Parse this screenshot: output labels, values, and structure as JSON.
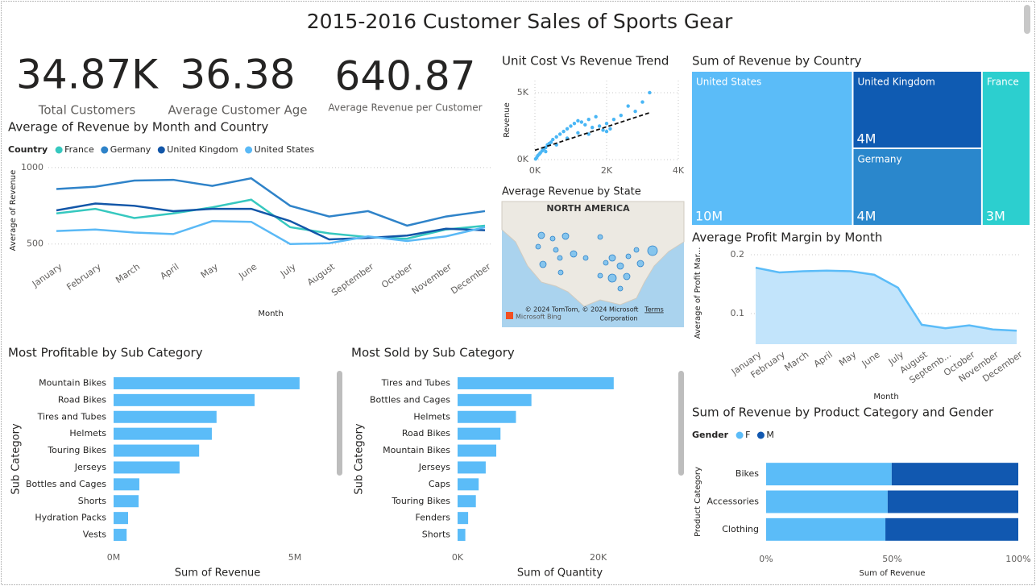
{
  "title": "2015-2016 Customer Sales of Sports Gear",
  "kpis": [
    {
      "value": "34.87K",
      "label": "Total Customers"
    },
    {
      "value": "36.38",
      "label": "Average Customer Age"
    },
    {
      "value": "640.87",
      "label": "Average Revenue per Customer"
    }
  ],
  "map": {
    "title": "Average Revenue by State",
    "region_label": "NORTH AMERICA",
    "attribution_lines": [
      "© 2024 TomTom, © 2024 Microsoft",
      "Corporation"
    ],
    "terms": "Terms",
    "provider": "Microsoft Bing"
  },
  "chart_data": [
    {
      "type": "line",
      "title": "Average of Revenue by Month and Country",
      "legend_title": "Country",
      "x_label": "Month",
      "y_label": "Average of Revenue",
      "categories": [
        "January",
        "February",
        "March",
        "April",
        "May",
        "June",
        "July",
        "August",
        "September",
        "October",
        "November",
        "December"
      ],
      "series": [
        {
          "name": "France",
          "color": "#36c8bf",
          "values": [
            700,
            730,
            670,
            700,
            740,
            790,
            610,
            570,
            545,
            535,
            595,
            620
          ]
        },
        {
          "name": "Germany",
          "color": "#2f83c9",
          "values": [
            860,
            875,
            915,
            920,
            880,
            930,
            750,
            680,
            715,
            620,
            680,
            715
          ]
        },
        {
          "name": "United Kingdom",
          "color": "#1256a8",
          "values": [
            720,
            765,
            750,
            715,
            730,
            730,
            650,
            530,
            540,
            555,
            600,
            590
          ]
        },
        {
          "name": "United States",
          "color": "#5ab9f6",
          "values": [
            585,
            595,
            575,
            565,
            650,
            645,
            500,
            505,
            550,
            520,
            550,
            610
          ]
        }
      ],
      "ylim": [
        430,
        1010
      ],
      "yticks": [
        500,
        1000
      ],
      "grid": true
    },
    {
      "type": "scatter",
      "title": "Unit Cost Vs Revenue Trend",
      "y_label": "Revenue",
      "color": "#49b6f5",
      "x": [
        20,
        50,
        80,
        120,
        150,
        200,
        250,
        300,
        350,
        400,
        450,
        500,
        600,
        700,
        800,
        900,
        1000,
        1100,
        1200,
        1300,
        1400,
        1500,
        1600,
        1700,
        1800,
        1900,
        2000,
        2100,
        2200,
        2400,
        2600,
        2800,
        3000,
        3200,
        300,
        600,
        900,
        1200,
        1500,
        2000
      ],
      "values": [
        50,
        150,
        300,
        400,
        500,
        650,
        800,
        900,
        1100,
        1200,
        1300,
        1500,
        1700,
        1900,
        2100,
        2300,
        2500,
        2700,
        2900,
        2800,
        2600,
        3000,
        2400,
        3200,
        2500,
        2200,
        2700,
        2300,
        3000,
        3300,
        4000,
        3600,
        4300,
        5000,
        600,
        1100,
        1600,
        2000,
        1900,
        2100
      ],
      "trendline": {
        "x": [
          0,
          3200
        ],
        "values": [
          700,
          3500
        ]
      },
      "xlim": [
        0,
        4000
      ],
      "xticks": [
        {
          "value": 0,
          "label": "0K"
        },
        {
          "value": 2000,
          "label": "2K"
        },
        {
          "value": 4000,
          "label": "4K"
        }
      ],
      "ylim": [
        0,
        5900
      ],
      "yticks": [
        {
          "value": 0,
          "label": "0K"
        },
        {
          "value": 5000,
          "label": "5K"
        }
      ],
      "grid": true
    },
    {
      "type": "treemap",
      "title": "Sum of Revenue by Country",
      "categories": [
        "United States",
        "United Kingdom",
        "Germany",
        "France"
      ],
      "values": [
        10000000,
        4000000,
        4000000,
        3000000
      ],
      "value_labels": [
        "10M",
        "4M",
        "4M",
        "3M"
      ],
      "colors": [
        "#5bbcf8",
        "#0f5bb2",
        "#2a87cc",
        "#2ccfcf"
      ]
    },
    {
      "type": "area",
      "title": "Average Profit Margin by Month",
      "x_label": "Month",
      "y_label": "Average of Profit Mar...",
      "categories": [
        "January",
        "February",
        "March",
        "April",
        "May",
        "June",
        "July",
        "August",
        "Septemb...",
        "October",
        "November",
        "December"
      ],
      "values": [
        0.178,
        0.17,
        0.172,
        0.173,
        0.172,
        0.166,
        0.144,
        0.081,
        0.075,
        0.08,
        0.073,
        0.071
      ],
      "color": "#5bbcf8",
      "fill": "#c2e4fb",
      "ylim": [
        0.048,
        0.222
      ],
      "yticks": [
        0.1,
        0.2
      ],
      "grid": true
    },
    {
      "type": "bar",
      "orientation": "horizontal",
      "title": "Most Profitable by Sub Category",
      "x_label": "Sum of Revenue",
      "y_label": "Sub Category",
      "categories": [
        "Mountain Bikes",
        "Road Bikes",
        "Tires and Tubes",
        "Helmets",
        "Touring Bikes",
        "Jerseys",
        "Bottles and Cages",
        "Shorts",
        "Hydration Packs",
        "Vests"
      ],
      "values": [
        5130000,
        3890000,
        2840000,
        2710000,
        2360000,
        1820000,
        710000,
        690000,
        400000,
        360000
      ],
      "color": "#5bbcf8",
      "xlim": [
        0,
        5800000
      ],
      "xticks": [
        {
          "value": 0,
          "label": "0M"
        },
        {
          "value": 5000000,
          "label": "5M"
        }
      ]
    },
    {
      "type": "bar",
      "orientation": "horizontal",
      "title": "Most Sold by Sub Category",
      "x_label": "Sum of Quantity",
      "y_label": "Sub Category",
      "categories": [
        "Tires and Tubes",
        "Bottles and Cages",
        "Helmets",
        "Road Bikes",
        "Mountain Bikes",
        "Jerseys",
        "Caps",
        "Touring Bikes",
        "Fenders",
        "Shorts"
      ],
      "values": [
        22200,
        10500,
        8300,
        6100,
        5500,
        4000,
        3000,
        2600,
        1500,
        1100
      ],
      "color": "#5bbcf8",
      "xlim": [
        0,
        26000
      ],
      "xticks": [
        {
          "value": 0,
          "label": "0K"
        },
        {
          "value": 20000,
          "label": "20K"
        }
      ]
    },
    {
      "type": "stacked_bar",
      "title": "Sum of Revenue by Product Category and Gender",
      "legend_title": "Gender",
      "x_label": "Sum of Revenue",
      "y_label": "Product Category",
      "categories": [
        "Bikes",
        "Accessories",
        "Clothing"
      ],
      "series": [
        {
          "name": "F",
          "color": "#5bbcf8",
          "values": [
            49.8,
            48.2,
            47.3
          ]
        },
        {
          "name": "M",
          "color": "#1158b0",
          "values": [
            50.2,
            51.8,
            52.7
          ]
        }
      ],
      "xlim": [
        0,
        100
      ],
      "xticks": [
        {
          "value": 0,
          "label": "0%"
        },
        {
          "value": 50,
          "label": "50%"
        },
        {
          "value": 100,
          "label": "100%"
        }
      ]
    }
  ]
}
